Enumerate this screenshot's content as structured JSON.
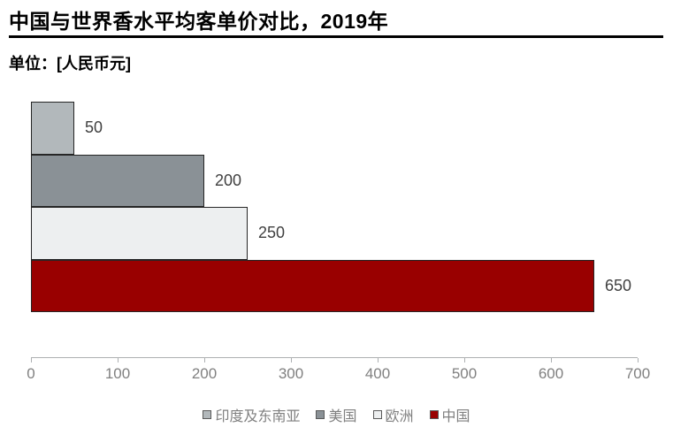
{
  "header": {
    "title": "中国与世界香水平均客单价对比，2019年",
    "unit": "单位：[人民币元]"
  },
  "chart_data": {
    "type": "bar",
    "orientation": "horizontal",
    "title": "中国与世界香水平均客单价对比，2019年",
    "unit_label": "单位：[人民币元]",
    "categories": [
      "印度及东南亚",
      "美国",
      "欧洲",
      "中国"
    ],
    "category_keys": [
      "india-southeast-asia",
      "usa",
      "europe",
      "china"
    ],
    "values": [
      50,
      200,
      250,
      650
    ],
    "value_labels": [
      "50",
      "200",
      "250",
      "650"
    ],
    "colors": [
      "#b2b8bb",
      "#8a9196",
      "#edeff0",
      "#990000"
    ],
    "bar_border_color": "#262626",
    "xlim": [
      0,
      700
    ],
    "x_ticks": [
      "0",
      "100",
      "200",
      "300",
      "400",
      "500",
      "600",
      "700"
    ],
    "grid": false,
    "legend_position": "bottom",
    "legend": [
      {
        "label": "印度及东南亚",
        "color": "#b2b8bb"
      },
      {
        "label": "美国",
        "color": "#8a9196"
      },
      {
        "label": "欧洲",
        "color": "#edeff0"
      },
      {
        "label": "中国",
        "color": "#990000"
      }
    ],
    "axis_color": "#adb0b2",
    "tick_label_color": "#808080",
    "value_label_color": "#404040",
    "legend_text_color": "#808080"
  }
}
